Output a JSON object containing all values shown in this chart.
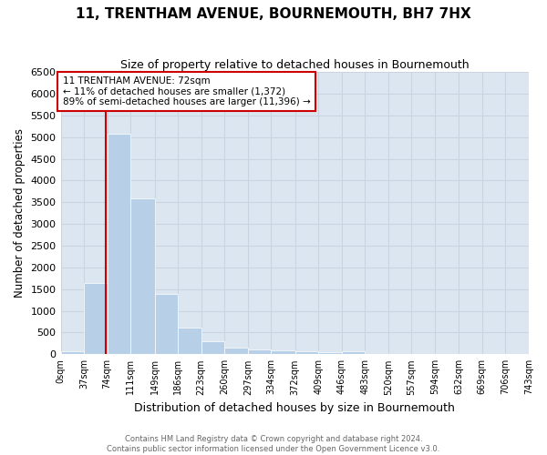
{
  "title": "11, TRENTHAM AVENUE, BOURNEMOUTH, BH7 7HX",
  "subtitle": "Size of property relative to detached houses in Bournemouth",
  "xlabel": "Distribution of detached houses by size in Bournemouth",
  "ylabel": "Number of detached properties",
  "bins": [
    0,
    37,
    74,
    111,
    149,
    186,
    223,
    260,
    297,
    334,
    372,
    409,
    446,
    483,
    520,
    557,
    594,
    632,
    669,
    706,
    743
  ],
  "counts": [
    75,
    1650,
    5075,
    3600,
    1400,
    620,
    300,
    160,
    120,
    100,
    60,
    40,
    65,
    0,
    0,
    0,
    0,
    0,
    0,
    0
  ],
  "bar_color": "#b8cfe8",
  "grid_color": "#c8d4e0",
  "background_color": "#dce6f0",
  "property_line_x": 72,
  "property_line_color": "#cc0000",
  "annotation_text": "11 TRENTHAM AVENUE: 72sqm\n← 11% of detached houses are smaller (1,372)\n89% of semi-detached houses are larger (11,396) →",
  "annotation_box_color": "#ffffff",
  "annotation_box_edge": "#cc0000",
  "ylim": [
    0,
    6500
  ],
  "yticks": [
    0,
    500,
    1000,
    1500,
    2000,
    2500,
    3000,
    3500,
    4000,
    4500,
    5000,
    5500,
    6000,
    6500
  ],
  "footer_line1": "Contains HM Land Registry data © Crown copyright and database right 2024.",
  "footer_line2": "Contains public sector information licensed under the Open Government Licence v3.0."
}
